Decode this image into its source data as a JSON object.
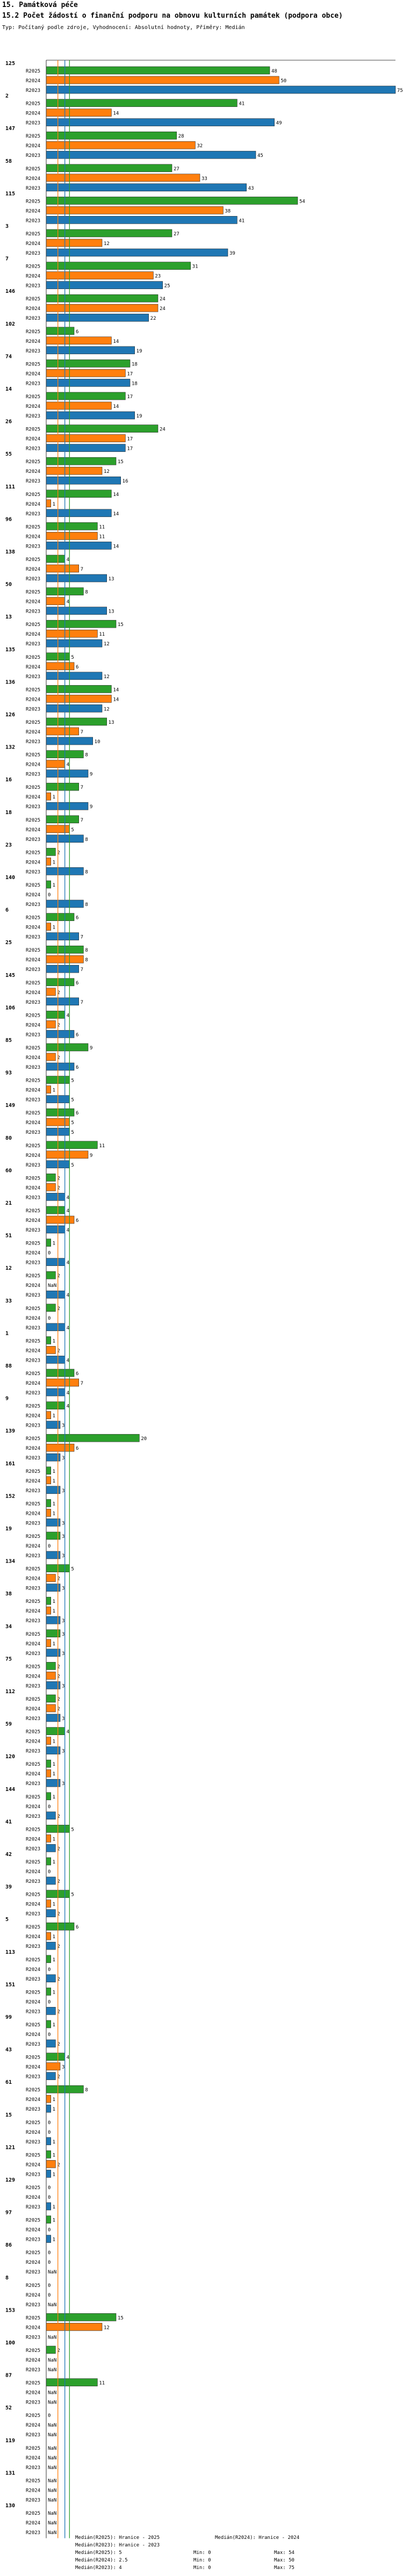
{
  "header": {
    "section": "15. Památková péče",
    "title": "15.2 Počet žádostí o finanční podporu na obnovu kulturních památek (podpora obce)",
    "subtitle": "Typ: Počítaný podle zdroje, Vyhodnocení: Absolutní hodnoty, Příměry: Medián"
  },
  "colors": {
    "R2025": "#2ca02c",
    "R2024": "#ff7f0e",
    "R2023": "#1f77b4"
  },
  "chart_data": {
    "type": "bar",
    "orientation": "horizontal",
    "series_names": [
      "R2025",
      "R2024",
      "R2023"
    ],
    "groups": [
      {
        "label": "125",
        "values": [
          48,
          50,
          75
        ]
      },
      {
        "label": "2",
        "values": [
          41,
          14,
          49
        ]
      },
      {
        "label": "147",
        "values": [
          28,
          32,
          45
        ]
      },
      {
        "label": "58",
        "values": [
          27,
          33,
          43
        ]
      },
      {
        "label": "115",
        "values": [
          54,
          38,
          41
        ]
      },
      {
        "label": "3",
        "values": [
          27,
          12,
          39
        ]
      },
      {
        "label": "7",
        "values": [
          31,
          23,
          25
        ]
      },
      {
        "label": "146",
        "values": [
          24,
          24,
          22
        ]
      },
      {
        "label": "102",
        "values": [
          6,
          14,
          19
        ]
      },
      {
        "label": "74",
        "values": [
          18,
          17,
          18
        ]
      },
      {
        "label": "14",
        "values": [
          17,
          14,
          19
        ]
      },
      {
        "label": "26",
        "values": [
          24,
          17,
          17
        ]
      },
      {
        "label": "55",
        "values": [
          15,
          12,
          16
        ]
      },
      {
        "label": "111",
        "values": [
          14,
          1,
          14
        ]
      },
      {
        "label": "96",
        "values": [
          11,
          11,
          14
        ]
      },
      {
        "label": "138",
        "values": [
          4,
          7,
          13
        ]
      },
      {
        "label": "50",
        "values": [
          8,
          4,
          13
        ]
      },
      {
        "label": "13",
        "values": [
          15,
          11,
          12
        ]
      },
      {
        "label": "135",
        "values": [
          5,
          6,
          12
        ]
      },
      {
        "label": "136",
        "values": [
          14,
          14,
          12
        ]
      },
      {
        "label": "126",
        "values": [
          13,
          7,
          10
        ]
      },
      {
        "label": "132",
        "values": [
          8,
          4,
          9
        ]
      },
      {
        "label": "16",
        "values": [
          7,
          1,
          9
        ]
      },
      {
        "label": "18",
        "values": [
          7,
          5,
          8
        ]
      },
      {
        "label": "23",
        "values": [
          2,
          1,
          8
        ]
      },
      {
        "label": "140",
        "values": [
          1,
          0,
          8
        ]
      },
      {
        "label": "6",
        "values": [
          6,
          1,
          7
        ]
      },
      {
        "label": "25",
        "values": [
          8,
          8,
          7
        ]
      },
      {
        "label": "145",
        "values": [
          6,
          2,
          7
        ]
      },
      {
        "label": "106",
        "values": [
          4,
          2,
          6
        ]
      },
      {
        "label": "85",
        "values": [
          9,
          2,
          6
        ]
      },
      {
        "label": "93",
        "values": [
          5,
          1,
          5
        ]
      },
      {
        "label": "149",
        "values": [
          6,
          5,
          5
        ]
      },
      {
        "label": "80",
        "values": [
          11,
          9,
          5
        ]
      },
      {
        "label": "60",
        "values": [
          2,
          2,
          4
        ]
      },
      {
        "label": "21",
        "values": [
          4,
          6,
          4
        ]
      },
      {
        "label": "51",
        "values": [
          1,
          0,
          4
        ]
      },
      {
        "label": "12",
        "values": [
          2,
          null,
          4
        ]
      },
      {
        "label": "33",
        "values": [
          2,
          0,
          4
        ]
      },
      {
        "label": "1",
        "values": [
          1,
          2,
          4
        ]
      },
      {
        "label": "88",
        "values": [
          6,
          7,
          4
        ]
      },
      {
        "label": "9",
        "values": [
          4,
          1,
          3
        ]
      },
      {
        "label": "139",
        "values": [
          20,
          6,
          3
        ]
      },
      {
        "label": "161",
        "values": [
          1,
          1,
          3
        ]
      },
      {
        "label": "152",
        "values": [
          1,
          1,
          3
        ]
      },
      {
        "label": "19",
        "values": [
          3,
          0,
          3
        ]
      },
      {
        "label": "134",
        "values": [
          5,
          2,
          3
        ]
      },
      {
        "label": "38",
        "values": [
          1,
          1,
          3
        ]
      },
      {
        "label": "34",
        "values": [
          3,
          1,
          3
        ]
      },
      {
        "label": "75",
        "values": [
          2,
          2,
          3
        ]
      },
      {
        "label": "112",
        "values": [
          2,
          2,
          3
        ]
      },
      {
        "label": "59",
        "values": [
          4,
          1,
          3
        ]
      },
      {
        "label": "120",
        "values": [
          1,
          1,
          3
        ]
      },
      {
        "label": "144",
        "values": [
          1,
          0,
          2
        ]
      },
      {
        "label": "41",
        "values": [
          5,
          1,
          2
        ]
      },
      {
        "label": "42",
        "values": [
          1,
          0,
          2
        ]
      },
      {
        "label": "39",
        "values": [
          5,
          1,
          2
        ]
      },
      {
        "label": "5",
        "values": [
          6,
          1,
          2
        ]
      },
      {
        "label": "113",
        "values": [
          1,
          0,
          2
        ]
      },
      {
        "label": "151",
        "values": [
          1,
          0,
          2
        ]
      },
      {
        "label": "99",
        "values": [
          1,
          0,
          2
        ]
      },
      {
        "label": "43",
        "values": [
          4,
          3,
          2
        ]
      },
      {
        "label": "61",
        "values": [
          8,
          1,
          1
        ]
      },
      {
        "label": "15",
        "values": [
          0,
          0,
          1
        ]
      },
      {
        "label": "121",
        "values": [
          1,
          2,
          1
        ]
      },
      {
        "label": "129",
        "values": [
          0,
          0,
          1
        ]
      },
      {
        "label": "97",
        "values": [
          1,
          0,
          1
        ]
      },
      {
        "label": "86",
        "values": [
          0,
          0,
          null
        ]
      },
      {
        "label": "8",
        "values": [
          0,
          0,
          null
        ]
      },
      {
        "label": "153",
        "values": [
          15,
          12,
          null
        ]
      },
      {
        "label": "100",
        "values": [
          2,
          null,
          null
        ]
      },
      {
        "label": "87",
        "values": [
          11,
          null,
          null
        ]
      },
      {
        "label": "52",
        "values": [
          0,
          null,
          null
        ]
      },
      {
        "label": "119",
        "values": [
          null,
          null,
          null
        ]
      },
      {
        "label": "131",
        "values": [
          null,
          null,
          null
        ]
      },
      {
        "label": "130",
        "values": [
          null,
          null,
          null
        ]
      }
    ],
    "missing_label": "NaN",
    "xlim": [
      0,
      75
    ],
    "reference_lines": [
      {
        "name": "Medián(R2025)",
        "value": 5
      },
      {
        "name": "Medián(R2024)",
        "value": 2.5
      },
      {
        "name": "Medián(R2023)",
        "value": 4
      }
    ]
  },
  "legend": [
    {
      "left": "Medián(R2025): Hranice - 2025",
      "mid": "",
      "right": "Medián(R2024): Hranice - 2024"
    },
    {
      "left": "Medián(R2023): Hranice - 2023",
      "mid": "",
      "right": ""
    },
    {
      "left": "Medián(R2025): 5",
      "mid": "Min: 0",
      "right": "Max: 54"
    },
    {
      "left": "Medián(R2024): 2.5",
      "mid": "Min: 0",
      "right": "Max: 50"
    },
    {
      "left": "Medián(R2023): 4",
      "mid": "Min: 0",
      "right": "Max: 75"
    }
  ]
}
